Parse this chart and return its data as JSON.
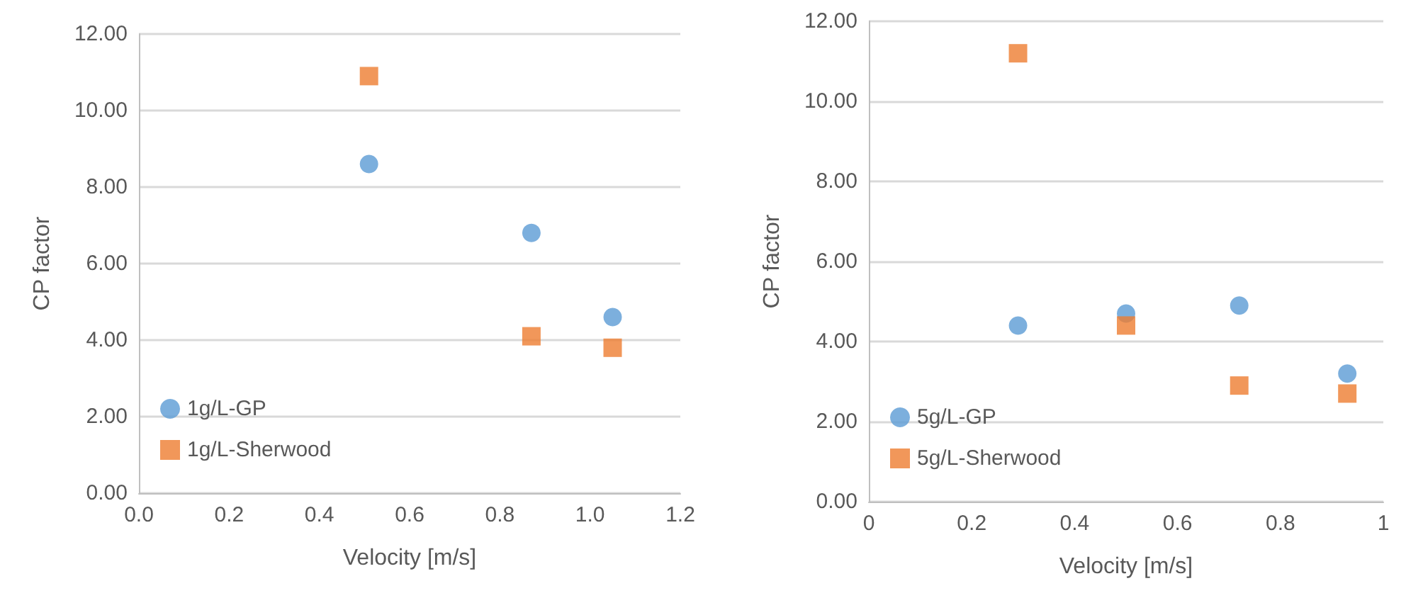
{
  "chart_data": [
    {
      "type": "scatter",
      "xlabel": "Velocity [m/s]",
      "ylabel": "CP factor",
      "xlim": [
        0,
        1.2
      ],
      "xticks": [
        {
          "value": 0,
          "label": "0.0"
        },
        {
          "value": 0.2,
          "label": "0.2"
        },
        {
          "value": 0.4,
          "label": "0.4"
        },
        {
          "value": 0.6,
          "label": "0.6"
        },
        {
          "value": 0.8,
          "label": "0.8"
        },
        {
          "value": 1,
          "label": "1.0"
        },
        {
          "value": 1.2,
          "label": "1.2"
        }
      ],
      "ylim": [
        0,
        12
      ],
      "yticks": [
        {
          "value": 0,
          "label": "0.00"
        },
        {
          "value": 2,
          "label": "2.00"
        },
        {
          "value": 4,
          "label": "4.00"
        },
        {
          "value": 6,
          "label": "6.00"
        },
        {
          "value": 8,
          "label": "8.00"
        },
        {
          "value": 10,
          "label": "10.00"
        },
        {
          "value": 12,
          "label": "12.00"
        }
      ],
      "grid": "y",
      "legend": "bottom left",
      "series": [
        {
          "name": "1g/L-GP",
          "color": "#5b9bd5",
          "marker": "circle",
          "x": [
            0.51,
            0.87,
            1.05
          ],
          "values": [
            8.6,
            6.8,
            4.6
          ]
        },
        {
          "name": "1g/L-Sherwood",
          "color": "#ed7d31",
          "marker": "square",
          "x": [
            0.51,
            0.87,
            1.05
          ],
          "values": [
            10.9,
            4.1,
            3.8
          ]
        }
      ]
    },
    {
      "type": "scatter",
      "xlabel": "Velocity [m/s]",
      "ylabel": "CP factor",
      "xlim": [
        0,
        1
      ],
      "xticks": [
        0,
        0.2,
        0.4,
        0.6,
        0.8,
        1
      ],
      "ylim": [
        0,
        12
      ],
      "yticks": [
        {
          "value": 0,
          "label": "0.00"
        },
        {
          "value": 2,
          "label": "2.00"
        },
        {
          "value": 4,
          "label": "4.00"
        },
        {
          "value": 6,
          "label": "6.00"
        },
        {
          "value": 8,
          "label": "8.00"
        },
        {
          "value": 10,
          "label": "10.00"
        },
        {
          "value": 12,
          "label": "12.00"
        }
      ],
      "grid": "y",
      "legend": "bottom left",
      "series": [
        {
          "name": "5g/L-GP",
          "color": "#5b9bd5",
          "marker": "circle",
          "x": [
            0.29,
            0.5,
            0.72,
            0.93
          ],
          "values": [
            4.4,
            4.7,
            4.9,
            3.2
          ]
        },
        {
          "name": "5g/L-Sherwood",
          "color": "#ed7d31",
          "marker": "square",
          "x": [
            0.29,
            0.5,
            0.72,
            0.93
          ],
          "values": [
            11.2,
            4.4,
            2.9,
            2.7
          ]
        }
      ]
    }
  ]
}
